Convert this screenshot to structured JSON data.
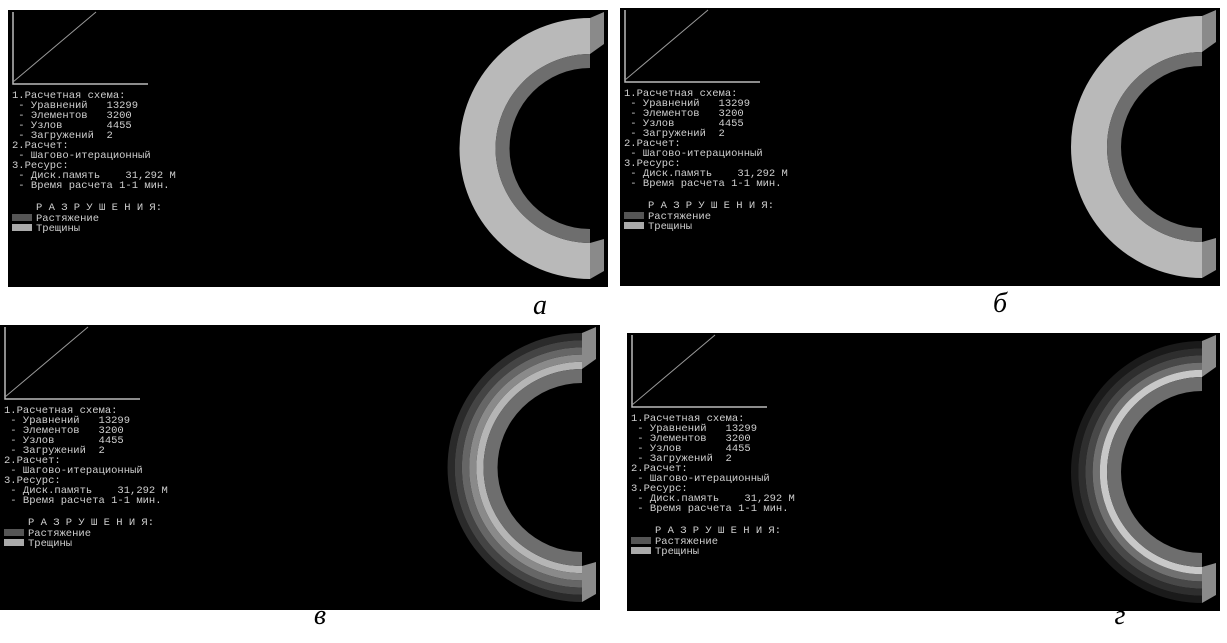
{
  "panels": [
    {
      "caption": "а",
      "lines": [
        "1.Расчетная схема:",
        " - Уравнений   13299",
        " - Элементов   3200",
        " - Узлов       4455",
        " - Загружений  2",
        "2.Расчет:",
        " - Шагово-итерационный",
        "3.Ресурс:",
        " - Диск.память    31,292 М",
        " - Время расчета 1-1 мин."
      ],
      "legend_title": "Р А З Р У Ш Е Н И Я:",
      "legend": [
        "Растяжение",
        "Трещины"
      ]
    },
    {
      "caption": "б",
      "lines": [
        "1.Расчетная схема:",
        " - Уравнений   13299",
        " - Элементов   3200",
        " - Узлов       4455",
        " - Загружений  2",
        "2.Расчет:",
        " - Шагово-итерационный",
        "3.Ресурс:",
        " - Диск.память    31,292 М",
        " - Время расчета 1-1 мин."
      ],
      "legend_title": "Р А З Р У Ш Е Н И Я:",
      "legend": [
        "Растяжение",
        "Трещины"
      ]
    },
    {
      "caption": "в",
      "lines": [
        "1.Расчетная схема:",
        " - Уравнений   13299",
        " - Элементов   3200",
        " - Узлов       4455",
        " - Загружений  2",
        "2.Расчет:",
        " - Шагово-итерационный",
        "3.Ресурс:",
        " - Диск.память    31,292 М",
        " - Время расчета 1-1 мин."
      ],
      "legend_title": "Р А З Р У Ш Е Н И Я:",
      "legend": [
        "Растяжение",
        "Трещины"
      ]
    },
    {
      "caption": "г",
      "lines": [
        "1.Расчетная схема:",
        " - Уравнений   13299",
        " - Элементов   3200",
        " - Узлов       4455",
        " - Загружений  2",
        "2.Расчет:",
        " - Шагово-итерационный",
        "3.Ресурс:",
        " - Диск.память    31,292 М",
        " - Время расчета 1-1 мин."
      ],
      "legend_title": "Р А З Р У Ш Е Н И Я:",
      "legend": [
        "Растяжение",
        "Трещины"
      ]
    }
  ]
}
